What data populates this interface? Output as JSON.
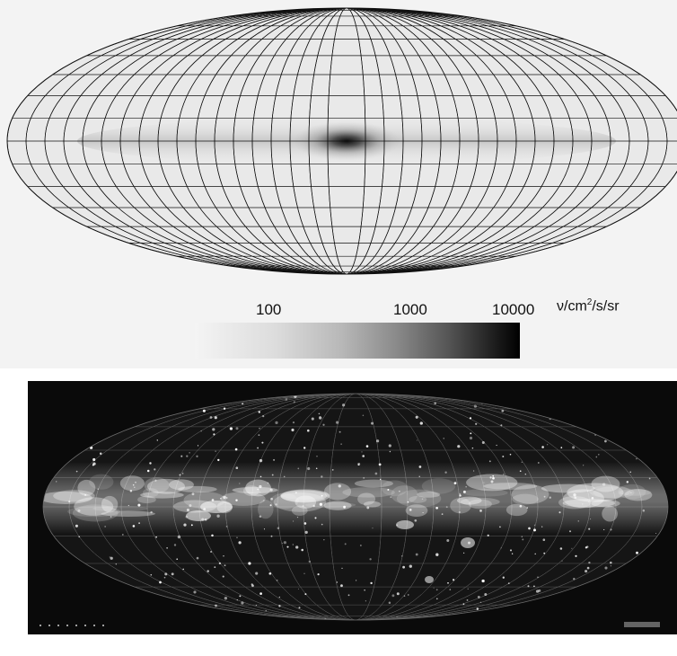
{
  "colorbar": {
    "tick_labels": [
      "100",
      "1000",
      "10000"
    ],
    "unit_prefix": "ν/cm",
    "unit_sup": "2",
    "unit_suffix": "/s/sr",
    "min_color": "#f4f4f4",
    "max_color": "#000000"
  },
  "top_map": {
    "projection": "Aitoff/Hammer all-sky",
    "background": "#f3f3f3",
    "grid_color": "#111111",
    "center_feature": "dark bulge at galactic center"
  },
  "bottom_map": {
    "background": "#0a0a0a",
    "band_color": "#e6e6e6",
    "caption_left": "",
    "caption_right": ""
  }
}
